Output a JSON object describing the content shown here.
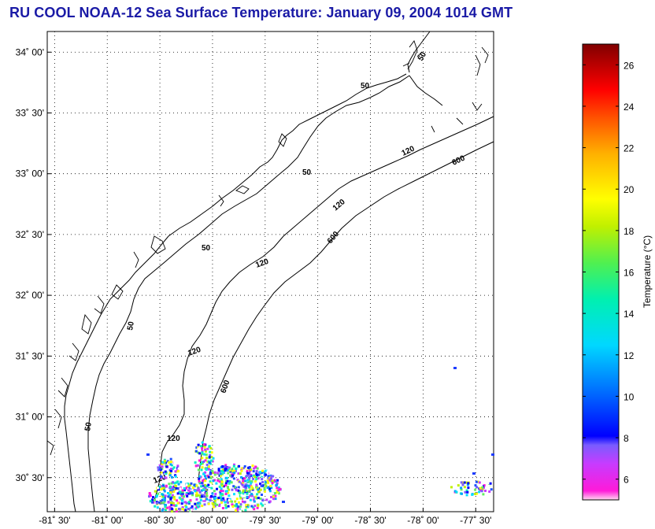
{
  "title": "RU COOL  NOAA-12  Sea Surface Temperature:  January 09, 2004 1014 GMT",
  "map": {
    "lat_range": [
      30.22,
      34.17
    ],
    "lon_range": [
      -81.57,
      -77.33
    ],
    "lat_ticks": [
      {
        "value": 34.0,
        "label": "34˚ 00'"
      },
      {
        "value": 33.5,
        "label": "33˚ 30'"
      },
      {
        "value": 33.0,
        "label": "33˚ 00'"
      },
      {
        "value": 32.5,
        "label": "32˚ 30'"
      },
      {
        "value": 32.0,
        "label": "32˚ 00'"
      },
      {
        "value": 31.5,
        "label": "31˚ 30'"
      },
      {
        "value": 31.0,
        "label": "31˚ 00'"
      },
      {
        "value": 30.5,
        "label": "30˚ 30'"
      }
    ],
    "lon_ticks": [
      {
        "value": -81.5,
        "label": "-81˚ 30'"
      },
      {
        "value": -81.0,
        "label": "-81˚ 00'"
      },
      {
        "value": -80.5,
        "label": "-80˚ 30'"
      },
      {
        "value": -80.0,
        "label": "-80˚ 00'"
      },
      {
        "value": -79.5,
        "label": "-79˚ 30'"
      },
      {
        "value": -79.0,
        "label": "-79˚ 00'"
      },
      {
        "value": -78.5,
        "label": "-78˚ 30'"
      },
      {
        "value": -78.0,
        "label": "-78˚ 00'"
      },
      {
        "value": -77.5,
        "label": "-77˚ 30'"
      }
    ],
    "grid": true,
    "contour_labels": [
      "50",
      "50",
      "50",
      "50",
      "50",
      "50",
      "120",
      "120",
      "120",
      "120",
      "120",
      "120",
      "600",
      "600",
      "600"
    ]
  },
  "colorbar": {
    "label": "Temperature (°C)",
    "range": [
      5,
      27
    ],
    "ticks": [
      "6",
      "8",
      "10",
      "12",
      "14",
      "16",
      "18",
      "20",
      "22",
      "24",
      "26"
    ]
  }
}
